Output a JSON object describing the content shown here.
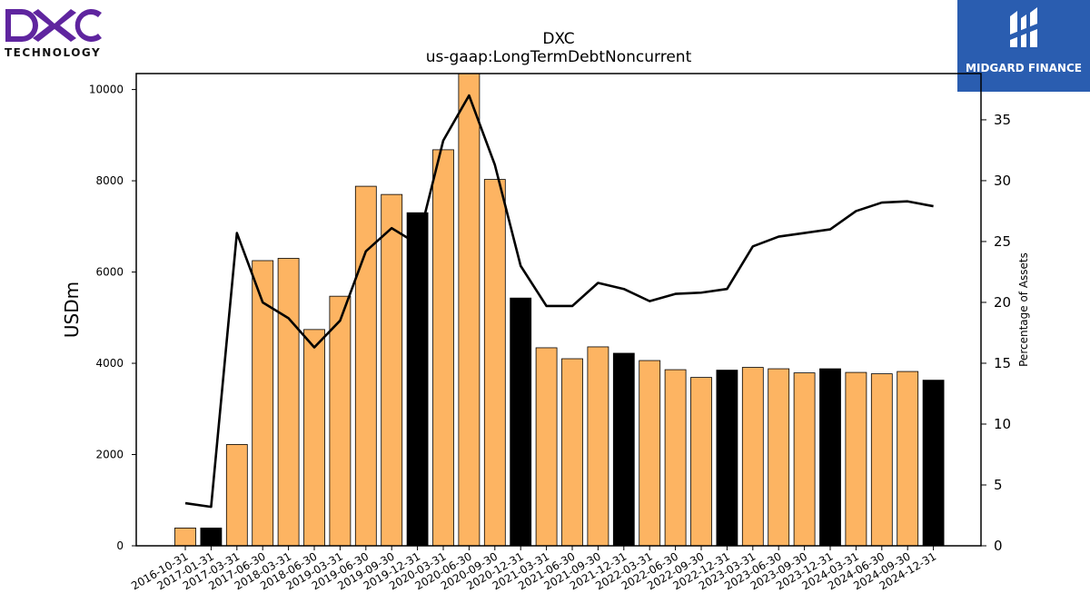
{
  "logos": {
    "left_company": "DXC",
    "left_sub": "TECHNOLOGY",
    "right_brand": "MIDGARD FINANCE"
  },
  "chart_data": {
    "type": "bar",
    "title": "DXC",
    "subtitle": "us-gaap:LongTermDebtNoncurrent",
    "ylabel": "USDm",
    "y2label": "Percentage of Assets",
    "ylim": [
      0,
      10350
    ],
    "y2lim": [
      0,
      38.8
    ],
    "yticks": [
      0,
      2000,
      4000,
      6000,
      8000,
      10000
    ],
    "y2ticks": [
      0,
      5,
      10,
      15,
      20,
      25,
      30,
      35
    ],
    "grid": false,
    "categories": [
      "2016-10-31",
      "2017-01-31",
      "2017-03-31",
      "2017-06-30",
      "2018-03-31",
      "2018-06-30",
      "2019-03-31",
      "2019-06-30",
      "2019-09-30",
      "2019-12-31",
      "2020-03-31",
      "2020-06-30",
      "2020-09-30",
      "2020-12-31",
      "2021-03-31",
      "2021-06-30",
      "2021-09-30",
      "2021-12-31",
      "2022-03-31",
      "2022-06-30",
      "2022-09-30",
      "2022-12-31",
      "2023-03-31",
      "2023-06-30",
      "2023-09-30",
      "2023-12-31",
      "2024-03-31",
      "2024-06-30",
      "2024-09-30",
      "2024-12-31"
    ],
    "series": [
      {
        "type": "bar",
        "values": [
          390,
          390,
          2220,
          6250,
          6300,
          4740,
          5470,
          7880,
          7700,
          7300,
          8680,
          10400,
          8030,
          5430,
          4340,
          4100,
          4360,
          4220,
          4060,
          3860,
          3690,
          3850,
          3910,
          3880,
          3790,
          3880,
          3800,
          3770,
          3820,
          3630
        ],
        "highlight": [
          false,
          true,
          false,
          false,
          false,
          false,
          false,
          false,
          false,
          true,
          false,
          false,
          false,
          true,
          false,
          false,
          false,
          true,
          false,
          false,
          false,
          true,
          false,
          false,
          false,
          true,
          false,
          false,
          false,
          true
        ],
        "color": "#fdb462",
        "highlight_color": "#000000"
      },
      {
        "type": "line",
        "axis": "right",
        "values": [
          3.5,
          3.2,
          25.7,
          20.0,
          18.7,
          16.3,
          18.5,
          24.2,
          26.1,
          24.8,
          33.3,
          37.0,
          31.3,
          23.0,
          19.7,
          19.7,
          21.6,
          21.1,
          20.1,
          20.7,
          20.8,
          21.1,
          24.6,
          25.4,
          25.7,
          26.0,
          27.5,
          28.2,
          28.3,
          27.9
        ],
        "color": "#000000"
      }
    ]
  }
}
